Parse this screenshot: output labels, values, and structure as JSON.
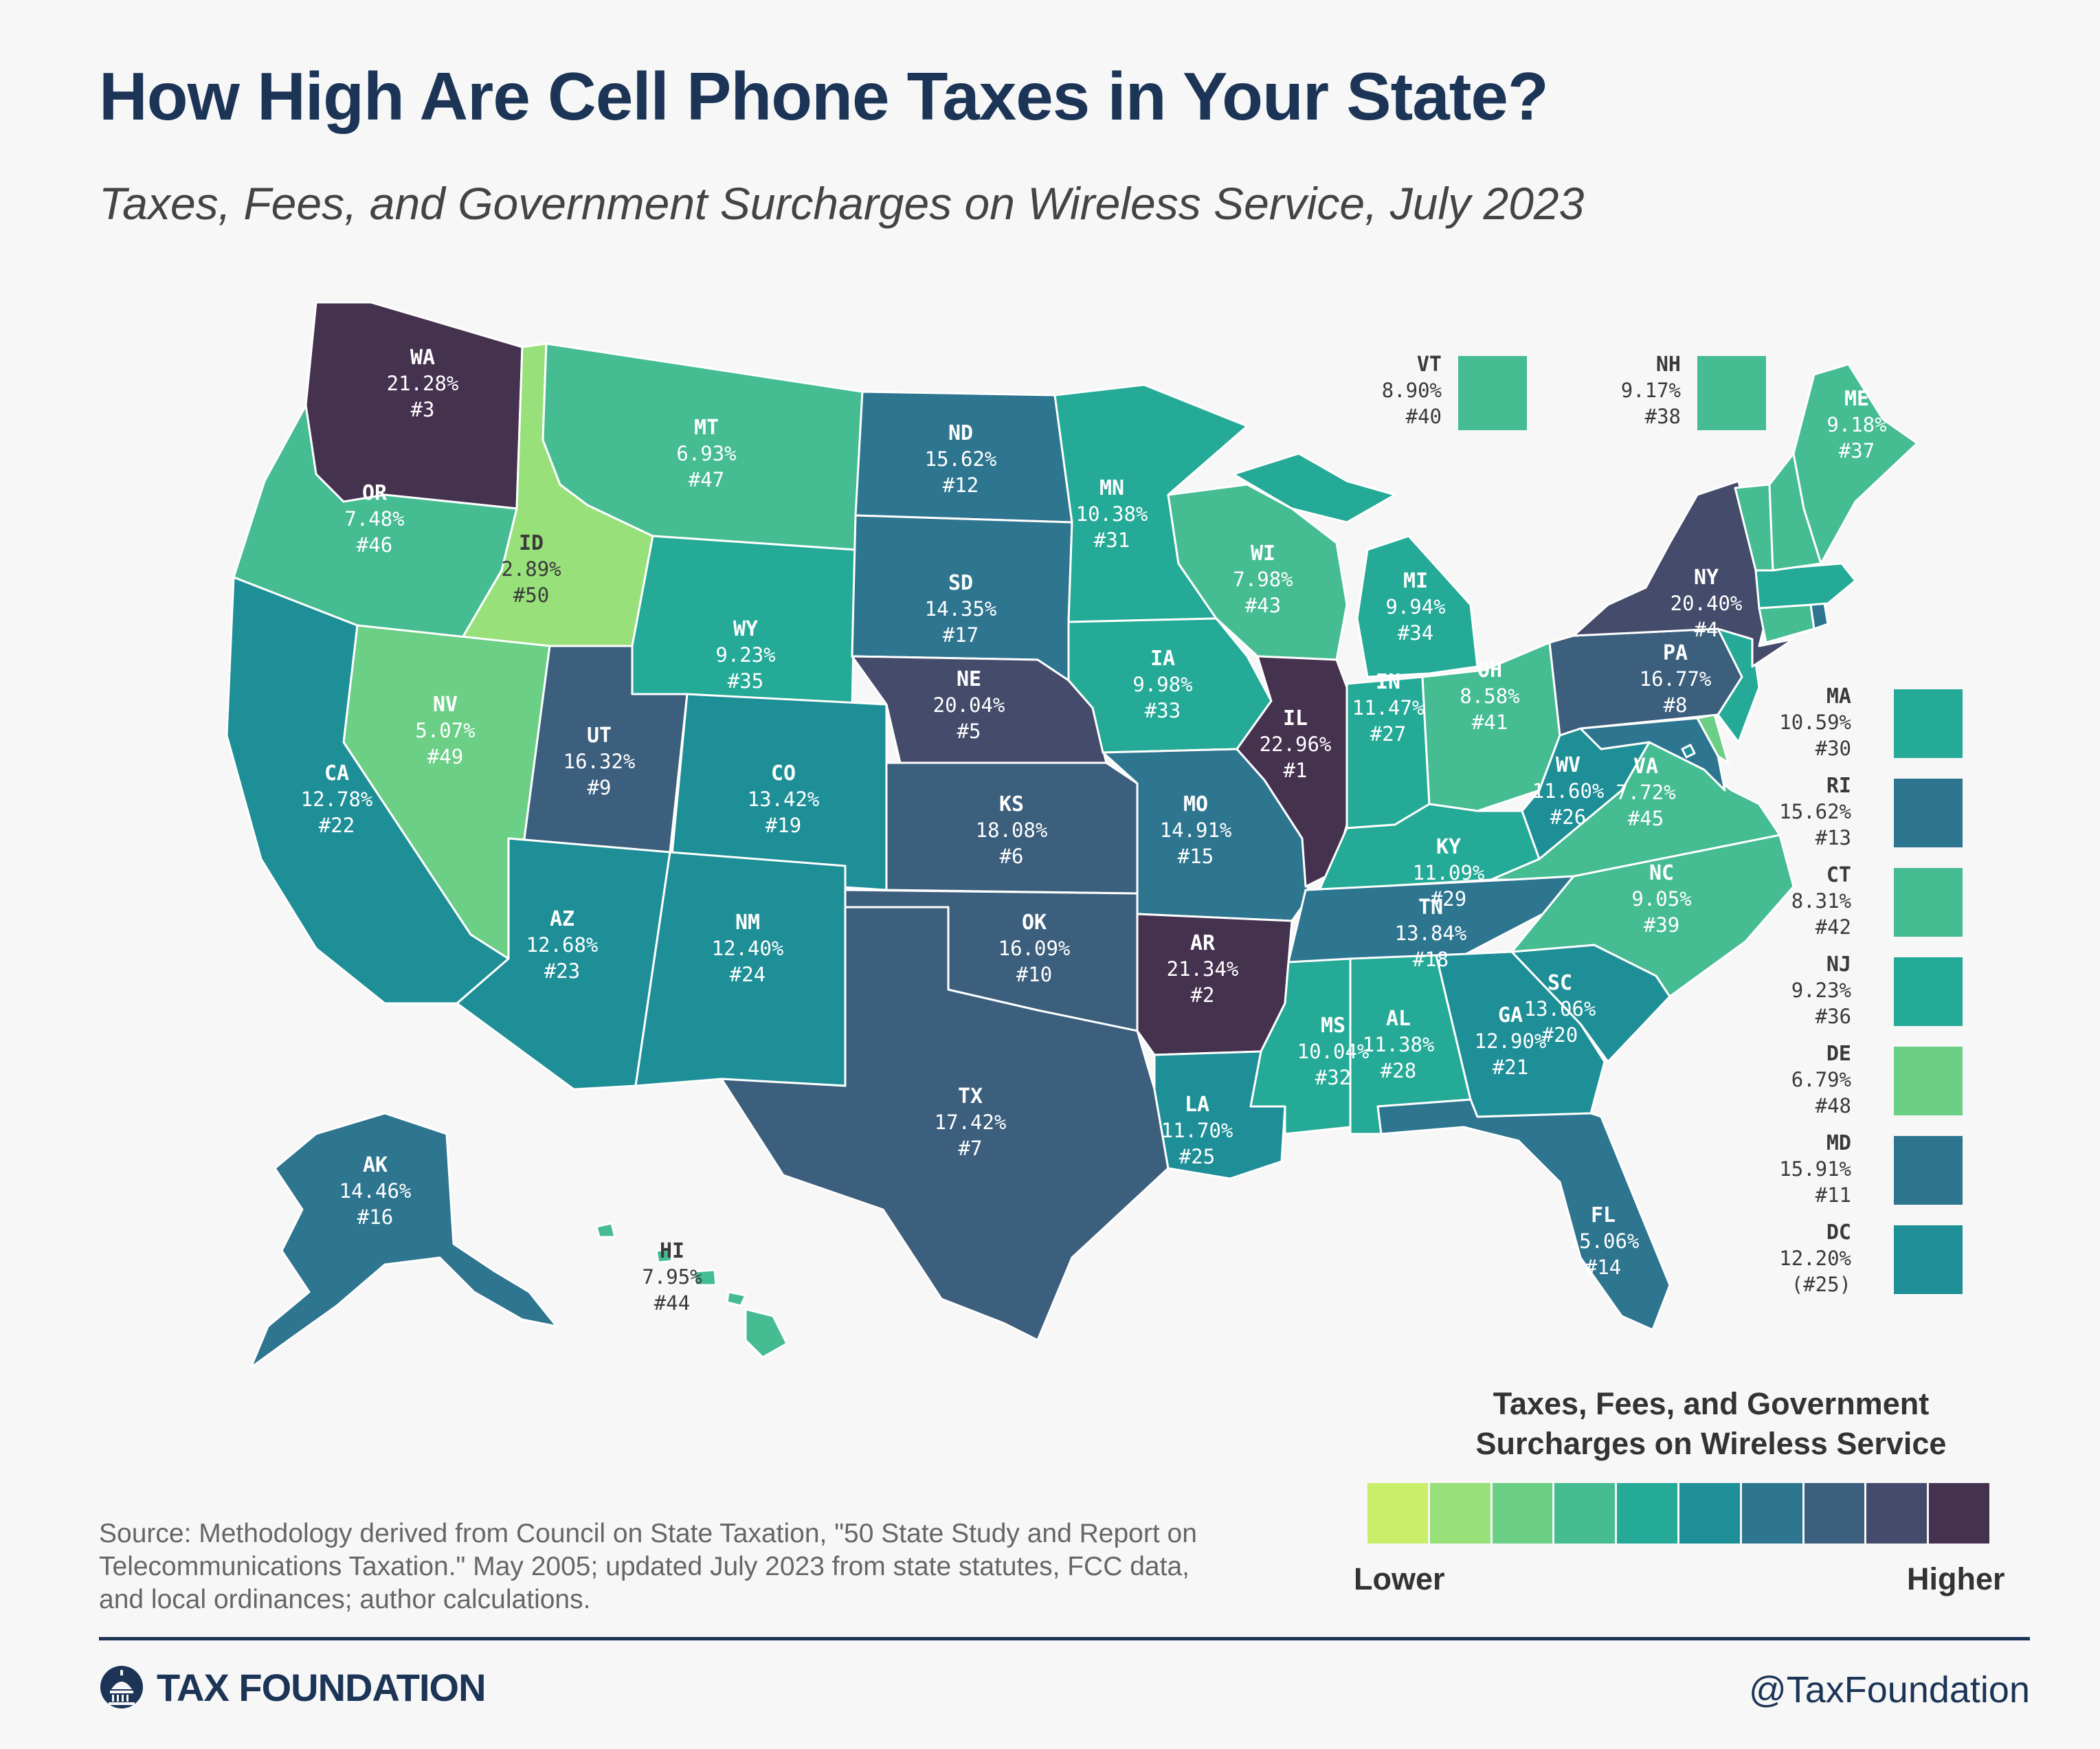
{
  "title": "How High Are Cell Phone Taxes in Your State?",
  "subtitle": "Taxes, Fees, and Government Surcharges on Wireless Service, July 2023",
  "palette": [
    "#c9ef6a",
    "#98e07a",
    "#6ccf86",
    "#45bc91",
    "#24aa97",
    "#1e8f97",
    "#2e7590",
    "#3c5f7d",
    "#454c6b",
    "#45324f"
  ],
  "legend": {
    "title_line1": "Taxes, Fees, and Government",
    "title_line2": "Surcharges on Wireless Service",
    "lower": "Lower",
    "higher": "Higher"
  },
  "states": [
    {
      "abbr": "WA",
      "rate": "21.28%",
      "rank": "#3",
      "level": 9
    },
    {
      "abbr": "OR",
      "rate": "7.48%",
      "rank": "#46",
      "level": 3
    },
    {
      "abbr": "ID",
      "rate": "2.89%",
      "rank": "#50",
      "level": 1
    },
    {
      "abbr": "MT",
      "rate": "6.93%",
      "rank": "#47",
      "level": 3
    },
    {
      "abbr": "ND",
      "rate": "15.62%",
      "rank": "#12",
      "level": 6
    },
    {
      "abbr": "MN",
      "rate": "10.38%",
      "rank": "#31",
      "level": 4
    },
    {
      "abbr": "WI",
      "rate": "7.98%",
      "rank": "#43",
      "level": 3
    },
    {
      "abbr": "MI",
      "rate": "9.94%",
      "rank": "#34",
      "level": 4
    },
    {
      "abbr": "SD",
      "rate": "14.35%",
      "rank": "#17",
      "level": 6
    },
    {
      "abbr": "WY",
      "rate": "9.23%",
      "rank": "#35",
      "level": 4
    },
    {
      "abbr": "NV",
      "rate": "5.07%",
      "rank": "#49",
      "level": 2
    },
    {
      "abbr": "CA",
      "rate": "12.78%",
      "rank": "#22",
      "level": 5
    },
    {
      "abbr": "UT",
      "rate": "16.32%",
      "rank": "#9",
      "level": 7
    },
    {
      "abbr": "CO",
      "rate": "13.42%",
      "rank": "#19",
      "level": 5
    },
    {
      "abbr": "NE",
      "rate": "20.04%",
      "rank": "#5",
      "level": 8
    },
    {
      "abbr": "IA",
      "rate": "9.98%",
      "rank": "#33",
      "level": 4
    },
    {
      "abbr": "IL",
      "rate": "22.96%",
      "rank": "#1",
      "level": 9
    },
    {
      "abbr": "IN",
      "rate": "11.47%",
      "rank": "#27",
      "level": 4
    },
    {
      "abbr": "OH",
      "rate": "8.58%",
      "rank": "#41",
      "level": 3
    },
    {
      "abbr": "PA",
      "rate": "16.77%",
      "rank": "#8",
      "level": 7
    },
    {
      "abbr": "NY",
      "rate": "20.40%",
      "rank": "#4",
      "level": 8
    },
    {
      "abbr": "KS",
      "rate": "18.08%",
      "rank": "#6",
      "level": 7
    },
    {
      "abbr": "MO",
      "rate": "14.91%",
      "rank": "#15",
      "level": 6
    },
    {
      "abbr": "KY",
      "rate": "11.09%",
      "rank": "#29",
      "level": 4
    },
    {
      "abbr": "WV",
      "rate": "11.60%",
      "rank": "#26",
      "level": 5
    },
    {
      "abbr": "VA",
      "rate": "7.72%",
      "rank": "#45",
      "level": 3
    },
    {
      "abbr": "AZ",
      "rate": "12.68%",
      "rank": "#23",
      "level": 5
    },
    {
      "abbr": "NM",
      "rate": "12.40%",
      "rank": "#24",
      "level": 5
    },
    {
      "abbr": "OK",
      "rate": "16.09%",
      "rank": "#10",
      "level": 7
    },
    {
      "abbr": "AR",
      "rate": "21.34%",
      "rank": "#2",
      "level": 9
    },
    {
      "abbr": "TN",
      "rate": "13.84%",
      "rank": "#18",
      "level": 6
    },
    {
      "abbr": "NC",
      "rate": "9.05%",
      "rank": "#39",
      "level": 3
    },
    {
      "abbr": "SC",
      "rate": "13.06%",
      "rank": "#20",
      "level": 5
    },
    {
      "abbr": "GA",
      "rate": "12.90%",
      "rank": "#21",
      "level": 5
    },
    {
      "abbr": "AL",
      "rate": "11.38%",
      "rank": "#28",
      "level": 4
    },
    {
      "abbr": "MS",
      "rate": "10.04%",
      "rank": "#32",
      "level": 4
    },
    {
      "abbr": "LA",
      "rate": "11.70%",
      "rank": "#25",
      "level": 5
    },
    {
      "abbr": "TX",
      "rate": "17.42%",
      "rank": "#7",
      "level": 7
    },
    {
      "abbr": "FL",
      "rate": "15.06%",
      "rank": "#14",
      "level": 6
    },
    {
      "abbr": "AK",
      "rate": "14.46%",
      "rank": "#16",
      "level": 6
    },
    {
      "abbr": "HI",
      "rate": "7.95%",
      "rank": "#44",
      "level": 3
    },
    {
      "abbr": "ME",
      "rate": "9.18%",
      "rank": "#37",
      "level": 3
    },
    {
      "abbr": "VT",
      "rate": "8.90%",
      "rank": "#40",
      "level": 3
    },
    {
      "abbr": "NH",
      "rate": "9.17%",
      "rank": "#38",
      "level": 3
    },
    {
      "abbr": "MA",
      "rate": "10.59%",
      "rank": "#30",
      "level": 4
    },
    {
      "abbr": "RI",
      "rate": "15.62%",
      "rank": "#13",
      "level": 6
    },
    {
      "abbr": "CT",
      "rate": "8.31%",
      "rank": "#42",
      "level": 3
    },
    {
      "abbr": "NJ",
      "rate": "9.23%",
      "rank": "#36",
      "level": 4
    },
    {
      "abbr": "DE",
      "rate": "6.79%",
      "rank": "#48",
      "level": 2
    },
    {
      "abbr": "MD",
      "rate": "15.91%",
      "rank": "#11",
      "level": 6
    },
    {
      "abbr": "DC",
      "rate": "12.20%",
      "rank": "(#25)",
      "level": 5
    }
  ],
  "source": "Source: Methodology derived from Council on State Taxation, \"50 State Study and Report on Telecommunications Taxation.\" May 2005; updated July 2023 from state statutes, FCC data, and local ordinances; author calculations.",
  "brand": "TAX FOUNDATION",
  "handle": "@TaxFoundation"
}
